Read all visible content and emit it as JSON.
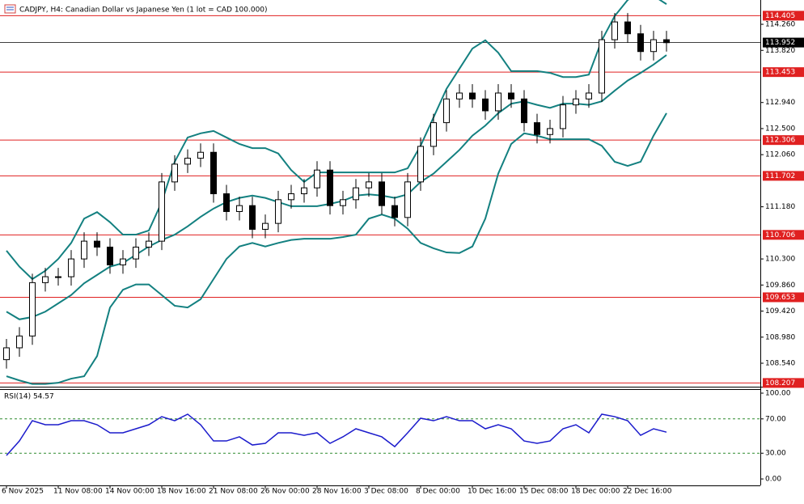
{
  "chart_data": [
    {
      "type": "candlestick",
      "title": "CADJPY, H4:  Canadian Dollar vs Japanese Yen (1 lot = CAD 100.000)",
      "ylim": [
        108.144,
        114.67
      ],
      "yticks": [
        {
          "value": 114.26,
          "label": "114.260"
        },
        {
          "value": 113.82,
          "label": "113.820"
        },
        {
          "value": 112.94,
          "label": "112.940"
        },
        {
          "value": 112.5,
          "label": "112.500"
        },
        {
          "value": 112.06,
          "label": "112.060"
        },
        {
          "value": 111.18,
          "label": "111.180"
        },
        {
          "value": 110.3,
          "label": "110.300"
        },
        {
          "value": 109.86,
          "label": "109.860"
        },
        {
          "value": 109.42,
          "label": "109.420"
        },
        {
          "value": 108.98,
          "label": "108.980"
        },
        {
          "value": 108.54,
          "label": "108.540"
        }
      ],
      "levels": [
        {
          "value": 114.405,
          "label": "114.405"
        },
        {
          "value": 113.453,
          "label": "113.453"
        },
        {
          "value": 112.306,
          "label": "112.306"
        },
        {
          "value": 111.702,
          "label": "111.702"
        },
        {
          "value": 110.706,
          "label": "110.706"
        },
        {
          "value": 109.653,
          "label": "109.653"
        },
        {
          "value": 108.207,
          "label": "108.207"
        }
      ],
      "level_color": "#e02020",
      "current_price": {
        "value": 113.952,
        "label": "113.952"
      },
      "open": [
        108.6,
        108.8,
        109.0,
        109.9,
        110.0,
        110.0,
        110.3,
        110.6,
        110.5,
        110.2,
        110.3,
        110.5,
        110.6,
        111.6,
        111.9,
        112.0,
        112.1,
        111.4,
        111.1,
        111.2,
        110.8,
        110.9,
        111.3,
        111.4,
        111.5,
        111.8,
        111.2,
        111.3,
        111.5,
        111.6,
        111.2,
        111.0,
        111.6,
        112.2,
        112.6,
        113.0,
        113.1,
        113.0,
        112.8,
        113.1,
        113.0,
        112.6,
        112.4,
        112.5,
        112.9,
        113.0,
        113.1,
        114.0,
        114.3,
        114.1,
        113.8,
        114.0
      ],
      "high": [
        108.95,
        109.15,
        110.05,
        110.15,
        110.15,
        110.45,
        110.75,
        110.75,
        110.65,
        110.45,
        110.65,
        110.75,
        111.75,
        112.05,
        112.15,
        112.25,
        112.25,
        111.55,
        111.35,
        111.35,
        111.05,
        111.45,
        111.55,
        111.65,
        111.95,
        111.95,
        111.45,
        111.65,
        111.75,
        111.75,
        111.35,
        111.75,
        112.35,
        112.75,
        113.15,
        113.25,
        113.25,
        113.15,
        113.25,
        113.25,
        113.15,
        112.75,
        112.65,
        113.05,
        113.15,
        113.25,
        114.15,
        114.45,
        114.45,
        114.25,
        114.15,
        114.15
      ],
      "low": [
        108.45,
        108.65,
        108.85,
        109.75,
        109.85,
        109.85,
        110.15,
        110.35,
        110.05,
        110.05,
        110.15,
        110.35,
        110.45,
        111.45,
        111.75,
        111.85,
        111.25,
        110.95,
        110.95,
        110.65,
        110.65,
        110.75,
        111.15,
        111.25,
        111.35,
        111.05,
        111.05,
        111.15,
        111.35,
        111.05,
        110.85,
        110.85,
        111.45,
        112.05,
        112.45,
        112.85,
        112.85,
        112.65,
        112.65,
        112.85,
        112.45,
        112.25,
        112.25,
        112.35,
        112.75,
        112.85,
        112.95,
        113.85,
        113.95,
        113.65,
        113.65,
        113.8
      ],
      "close": [
        108.8,
        109.0,
        109.9,
        110.0,
        110.0,
        110.3,
        110.6,
        110.5,
        110.2,
        110.3,
        110.5,
        110.6,
        111.6,
        111.9,
        112.0,
        112.1,
        111.4,
        111.1,
        111.2,
        110.8,
        110.9,
        111.3,
        111.4,
        111.5,
        111.8,
        111.2,
        111.3,
        111.5,
        111.6,
        111.2,
        111.0,
        111.6,
        112.2,
        112.6,
        113.0,
        113.1,
        113.0,
        112.8,
        113.1,
        113.0,
        112.6,
        112.4,
        112.5,
        112.9,
        113.0,
        113.1,
        114.0,
        114.3,
        114.1,
        113.8,
        114.0,
        113.95
      ],
      "bands": {
        "color": "#138080",
        "upper": [
          110.44,
          110.17,
          109.96,
          110.1,
          110.3,
          110.57,
          110.98,
          111.09,
          110.92,
          110.71,
          110.71,
          110.78,
          111.26,
          111.94,
          112.35,
          112.42,
          112.46,
          112.35,
          112.24,
          112.17,
          112.17,
          112.08,
          111.8,
          111.6,
          111.76,
          111.76,
          111.76,
          111.76,
          111.76,
          111.76,
          111.76,
          111.83,
          112.21,
          112.69,
          113.17,
          113.51,
          113.85,
          113.99,
          113.78,
          113.47,
          113.47,
          113.47,
          113.44,
          113.37,
          113.37,
          113.41,
          113.99,
          114.4,
          114.67,
          114.81,
          114.74,
          114.6
        ],
        "middle": [
          109.41,
          109.28,
          109.32,
          109.41,
          109.55,
          109.69,
          109.89,
          110.03,
          110.17,
          110.23,
          110.37,
          110.51,
          110.62,
          110.71,
          110.85,
          111.01,
          111.15,
          111.26,
          111.33,
          111.37,
          111.33,
          111.26,
          111.19,
          111.19,
          111.19,
          111.23,
          111.28,
          111.37,
          111.39,
          111.37,
          111.33,
          111.39,
          111.6,
          111.74,
          111.94,
          112.14,
          112.38,
          112.55,
          112.76,
          112.92,
          112.96,
          112.9,
          112.85,
          112.92,
          112.92,
          112.9,
          112.96,
          113.14,
          113.31,
          113.44,
          113.58,
          113.74
        ],
        "lower": [
          108.32,
          108.25,
          108.19,
          108.19,
          108.21,
          108.28,
          108.32,
          108.66,
          109.48,
          109.78,
          109.87,
          109.87,
          109.69,
          109.51,
          109.48,
          109.62,
          109.96,
          110.3,
          110.51,
          110.57,
          110.51,
          110.57,
          110.62,
          110.64,
          110.64,
          110.64,
          110.67,
          110.71,
          110.98,
          111.05,
          110.98,
          110.81,
          110.57,
          110.48,
          110.41,
          110.4,
          110.51,
          110.98,
          111.74,
          112.24,
          112.42,
          112.38,
          112.32,
          112.32,
          112.32,
          112.32,
          112.21,
          111.94,
          111.87,
          111.94,
          112.38,
          112.76
        ]
      }
    },
    {
      "type": "line",
      "title": "RSI(14) 54.57",
      "color": "#1b1bcc",
      "ylim": [
        -7.5,
        104.7
      ],
      "yticks": [
        {
          "value": 100,
          "label": "100.00"
        },
        {
          "value": 70,
          "label": "70.00"
        },
        {
          "value": 30,
          "label": "30.00"
        },
        {
          "value": 0,
          "label": "0.00"
        }
      ],
      "levels": [
        70,
        30
      ],
      "level_color": "#2e8b2e",
      "categories": [
        "6 Nov 2025",
        null,
        null,
        null,
        "11 Nov 08:00",
        null,
        null,
        null,
        "14 Nov 00:00",
        null,
        null,
        null,
        "18 Nov 16:00",
        null,
        null,
        null,
        "21 Nov 08:00",
        null,
        null,
        null,
        "26 Nov 00:00",
        null,
        null,
        null,
        "28 Nov 16:00",
        null,
        null,
        null,
        "3 Dec 08:00",
        null,
        null,
        null,
        "8 Dec 00:00",
        null,
        null,
        null,
        "10 Dec 16:00",
        null,
        null,
        null,
        "15 Dec 08:00",
        null,
        null,
        null,
        "18 Dec 00:00",
        null,
        null,
        null,
        "22 Dec 16:00",
        null,
        null,
        null
      ],
      "values": [
        27.4,
        44.3,
        67.9,
        63.2,
        63.2,
        67.9,
        67.9,
        63.2,
        53.8,
        53.8,
        58.5,
        63.2,
        72.6,
        67.9,
        75.5,
        63.2,
        44.3,
        44.3,
        49.1,
        39.6,
        41.5,
        53.8,
        53.8,
        50.9,
        53.8,
        41.5,
        49.1,
        58.5,
        53.8,
        49.1,
        37.7,
        53.8,
        70.8,
        67.9,
        72.6,
        67.9,
        67.9,
        58.5,
        63.2,
        58.5,
        44.3,
        41.5,
        44.3,
        58.5,
        63.2,
        53.8,
        75.5,
        72.6,
        67.9,
        50.9,
        58.5,
        54.57
      ]
    }
  ]
}
